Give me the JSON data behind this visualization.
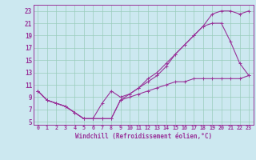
{
  "xlabel": "Windchill (Refroidissement éolien,°C)",
  "bg_color": "#cce8f0",
  "line_color": "#993399",
  "xlim": [
    -0.5,
    23.5
  ],
  "ylim": [
    4.5,
    24
  ],
  "xticks": [
    0,
    1,
    2,
    3,
    4,
    5,
    6,
    7,
    8,
    9,
    10,
    11,
    12,
    13,
    14,
    15,
    16,
    17,
    18,
    19,
    20,
    21,
    22,
    23
  ],
  "yticks": [
    5,
    7,
    9,
    11,
    13,
    15,
    17,
    19,
    21,
    23
  ],
  "grid_color": "#99ccbb",
  "curve1_x": [
    0,
    1,
    2,
    3,
    4,
    5,
    6,
    7,
    8,
    9,
    10,
    11,
    12,
    13,
    14,
    15,
    16,
    17,
    18,
    19,
    20,
    21,
    22,
    23
  ],
  "curve1_y": [
    10,
    8.5,
    8.0,
    7.5,
    6.5,
    5.5,
    5.5,
    8.0,
    10.0,
    9.0,
    9.5,
    10.5,
    12.0,
    13.0,
    14.5,
    16.0,
    17.5,
    19.0,
    20.5,
    22.5,
    23.0,
    23.0,
    22.5,
    23.0
  ],
  "curve2_x": [
    0,
    1,
    2,
    3,
    4,
    5,
    6,
    7,
    8,
    9,
    10,
    11,
    12,
    13,
    14,
    15,
    16,
    17,
    18,
    19,
    20,
    21,
    22,
    23
  ],
  "curve2_y": [
    10,
    8.5,
    8.0,
    7.5,
    6.5,
    5.5,
    5.5,
    5.5,
    5.5,
    8.5,
    9.5,
    10.5,
    11.5,
    12.5,
    14.0,
    16.0,
    17.5,
    19.0,
    20.5,
    21.0,
    21.0,
    18.0,
    14.5,
    12.5
  ],
  "curve3_x": [
    0,
    1,
    2,
    3,
    4,
    5,
    6,
    7,
    8,
    9,
    10,
    11,
    12,
    13,
    14,
    15,
    16,
    17,
    18,
    19,
    20,
    21,
    22,
    23
  ],
  "curve3_y": [
    10,
    8.5,
    8.0,
    7.5,
    6.5,
    5.5,
    5.5,
    5.5,
    5.5,
    8.5,
    9.0,
    9.5,
    10.0,
    10.5,
    11.0,
    11.5,
    11.5,
    12.0,
    12.0,
    12.0,
    12.0,
    12.0,
    12.0,
    12.5
  ],
  "marker": "+",
  "markersize": 3,
  "linewidth": 0.8
}
